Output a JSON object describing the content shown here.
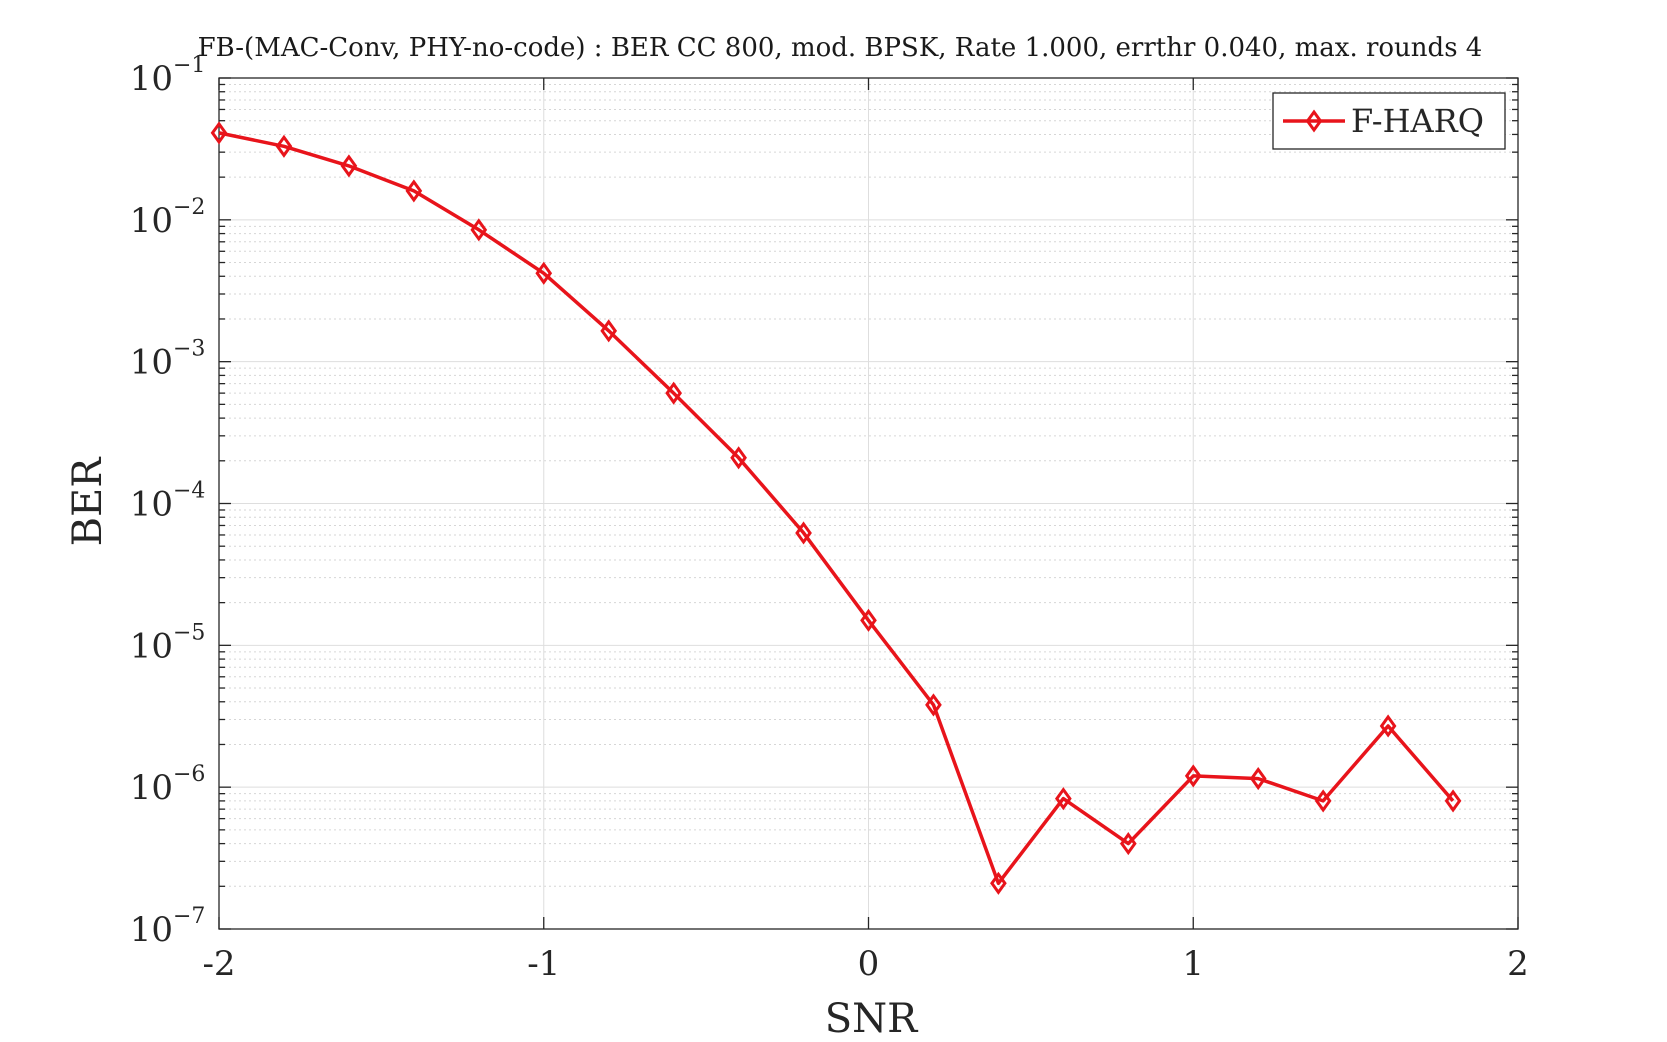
{
  "chart_data": {
    "type": "line",
    "title": "FB-(MAC-Conv, PHY-no-code) : BER CC 800, mod. BPSK, Rate 1.000, errthr 0.040, max. rounds 4",
    "xlabel": "SNR",
    "ylabel": "BER",
    "xlim": [
      -2,
      2
    ],
    "ylim": [
      1e-07,
      0.1
    ],
    "yscale": "log",
    "x_ticks": [
      -2,
      -1,
      0,
      1,
      2
    ],
    "x_tick_labels": [
      "-2",
      "-1",
      "0",
      "1",
      "2"
    ],
    "y_ticks": [
      {
        "value": 0.1,
        "base": "10",
        "exp": "−1"
      },
      {
        "value": 0.01,
        "base": "10",
        "exp": "−2"
      },
      {
        "value": 0.001,
        "base": "10",
        "exp": "−3"
      },
      {
        "value": 0.0001,
        "base": "10",
        "exp": "−4"
      },
      {
        "value": 1e-05,
        "base": "10",
        "exp": "−5"
      },
      {
        "value": 1e-06,
        "base": "10",
        "exp": "−6"
      },
      {
        "value": 1e-07,
        "base": "10",
        "exp": "−7"
      }
    ],
    "grid": true,
    "legend_position": "top-right",
    "series": [
      {
        "name": "F-HARQ",
        "color": "#e8141b",
        "marker": "diamond",
        "x": [
          -2.0,
          -1.8,
          -1.6,
          -1.4,
          -1.2,
          -1.0,
          -0.8,
          -0.6,
          -0.4,
          -0.2,
          0.0,
          0.2,
          0.4,
          0.6,
          0.8,
          1.0,
          1.2,
          1.4,
          1.6,
          1.8
        ],
        "y": [
          0.041,
          0.033,
          0.024,
          0.016,
          0.0085,
          0.0042,
          0.00165,
          0.0006,
          0.00021,
          6.2e-05,
          1.5e-05,
          3.8e-06,
          2.1e-07,
          8.3e-07,
          4e-07,
          1.2e-06,
          1.15e-06,
          8e-07,
          2.7e-06,
          8e-07
        ]
      }
    ]
  }
}
